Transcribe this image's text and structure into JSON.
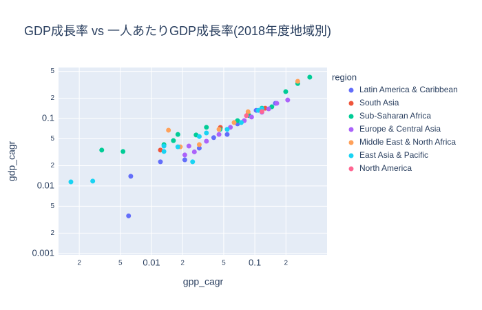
{
  "chart_data": {
    "type": "scatter",
    "title": "GDP成長率 vs 一人あたりGDP成長率(2018年度地域別)",
    "x_label": "gpp_cagr",
    "y_label": "gdp_cagr",
    "legend_title": "region",
    "legend_position": "right",
    "x_log": true,
    "y_log": true,
    "grid": true,
    "xlim": [
      0.00126,
      0.5
    ],
    "ylim": [
      0.00095,
      0.57
    ],
    "xticks": [
      {
        "value": 0.002,
        "label": "2"
      },
      {
        "value": 0.005,
        "label": "5"
      },
      0.01,
      {
        "value": 0.02,
        "label": "2"
      },
      {
        "value": 0.05,
        "label": "5"
      },
      0.1,
      {
        "value": 0.2,
        "label": "2"
      }
    ],
    "yticks": [
      0.001,
      {
        "value": 0.002,
        "label": "2"
      },
      {
        "value": 0.005,
        "label": "5"
      },
      0.01,
      {
        "value": 0.02,
        "label": "2"
      },
      {
        "value": 0.05,
        "label": "5"
      },
      0.1,
      {
        "value": 0.2,
        "label": "2"
      },
      {
        "value": 0.5,
        "label": "5"
      }
    ],
    "series": [
      {
        "name": "Latin America & Caribbean",
        "color": "#636efa",
        "x": [
          0.0063,
          0.006,
          0.0122,
          0.021,
          0.029,
          0.04,
          0.068,
          0.103,
          0.158,
          0.054
        ],
        "values": [
          0.0139,
          0.0036,
          0.0228,
          0.0244,
          0.0364,
          0.052,
          0.083,
          0.132,
          0.168,
          0.058
        ]
      },
      {
        "name": "South Asia",
        "color": "#ef553b",
        "x": [
          0.0122,
          0.0464,
          0.086,
          0.126
        ],
        "values": [
          0.034,
          0.0737,
          0.118,
          0.142
        ]
      },
      {
        "name": "Sub-Saharan Africa",
        "color": "#00cc96",
        "x": [
          0.0033,
          0.0053,
          0.0132,
          0.0163,
          0.018,
          0.027,
          0.034,
          0.046,
          0.068,
          0.088,
          0.117,
          0.199,
          0.26,
          0.34,
          0.146
        ],
        "values": [
          0.034,
          0.0324,
          0.041,
          0.047,
          0.058,
          0.057,
          0.074,
          0.069,
          0.093,
          0.11,
          0.142,
          0.25,
          0.33,
          0.41,
          0.149
        ]
      },
      {
        "name": "Europe & Central Asia",
        "color": "#ab63fa",
        "x": [
          0.021,
          0.026,
          0.034,
          0.045,
          0.058,
          0.079,
          0.093,
          0.117,
          0.136,
          0.163,
          0.208,
          0.023
        ],
        "values": [
          0.0288,
          0.032,
          0.046,
          0.058,
          0.074,
          0.093,
          0.105,
          0.124,
          0.139,
          0.168,
          0.188,
          0.039
        ]
      },
      {
        "name": "Middle East & North Africa",
        "color": "#ffa15a",
        "x": [
          0.0146,
          0.019,
          0.029,
          0.045,
          0.063,
          0.086,
          0.26
        ],
        "values": [
          0.067,
          0.038,
          0.041,
          0.069,
          0.087,
          0.126,
          0.356
        ]
      },
      {
        "name": "East Asia & Pacific",
        "color": "#19d3f3",
        "x": [
          0.00166,
          0.0027,
          0.0132,
          0.0132,
          0.025,
          0.018,
          0.029,
          0.054,
          0.074,
          0.108,
          0.117,
          0.034
        ],
        "values": [
          0.0115,
          0.0118,
          0.039,
          0.0324,
          0.0228,
          0.038,
          0.054,
          0.069,
          0.087,
          0.132,
          0.139,
          0.061
        ]
      },
      {
        "name": "North America",
        "color": "#ff6692",
        "x": [
          0.083,
          0.117
        ],
        "values": [
          0.11,
          0.127
        ]
      }
    ]
  }
}
